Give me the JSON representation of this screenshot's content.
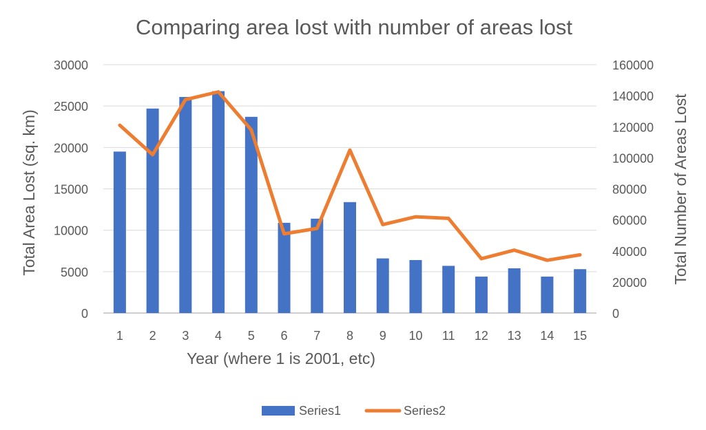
{
  "chart_data": {
    "type": "bar",
    "title": "Comparing area lost with number of areas lost",
    "xlabel": "Year (where 1 is 2001, etc)",
    "ylabel": "Total Area Lost (sq. km)",
    "y2label": "Total Number of Areas Lost",
    "categories": [
      "1",
      "2",
      "3",
      "4",
      "5",
      "6",
      "7",
      "8",
      "9",
      "10",
      "11",
      "12",
      "13",
      "14",
      "15"
    ],
    "ylim": [
      0,
      30000
    ],
    "y2lim": [
      0,
      160000
    ],
    "yticks": [
      "0",
      "5000",
      "10000",
      "15000",
      "20000",
      "25000",
      "30000"
    ],
    "y2ticks": [
      "0",
      "20000",
      "40000",
      "60000",
      "80000",
      "100000",
      "120000",
      "140000",
      "160000"
    ],
    "grid": true,
    "legend_position": "bottom",
    "series": [
      {
        "name": "Series1",
        "type": "bar",
        "axis": "left",
        "color": "#4472C4",
        "values": [
          19500,
          24700,
          26100,
          26800,
          23700,
          10900,
          11400,
          13400,
          6600,
          6400,
          5700,
          4400,
          5400,
          4400,
          5300
        ]
      },
      {
        "name": "Series2",
        "type": "line",
        "axis": "right",
        "color": "#ED7D31",
        "values": [
          121000,
          102000,
          137500,
          142500,
          118000,
          51000,
          54500,
          105000,
          57000,
          62000,
          61000,
          35000,
          40500,
          34000,
          37500
        ]
      }
    ]
  }
}
